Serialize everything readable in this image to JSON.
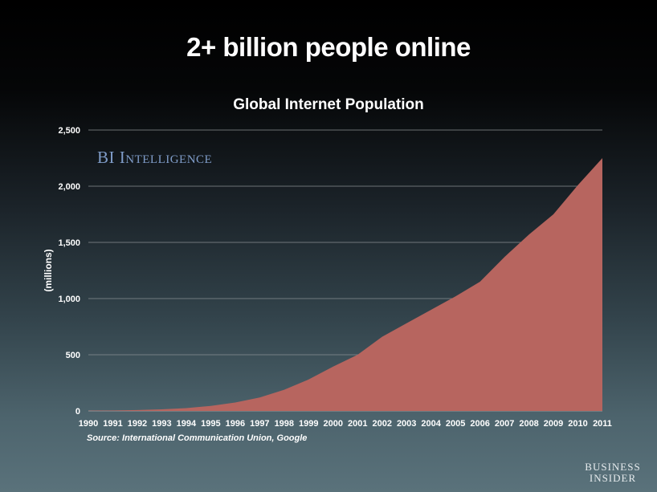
{
  "slide": {
    "title": "2+ billion people online",
    "source": "Source: International Communication Union, Google",
    "watermark": "BI Intelligence",
    "logo_line1": "BUSINESS",
    "logo_line2": "INSIDER"
  },
  "colors": {
    "area_fill": "#b7655f",
    "grid": "#8a8f93"
  },
  "chart_data": {
    "type": "area",
    "title": "Global Internet Population",
    "xlabel": "",
    "ylabel": "(millions)",
    "ylim": [
      0,
      2500
    ],
    "y_ticks": [
      "0",
      "500",
      "1,000",
      "1,500",
      "2,000",
      "2,500"
    ],
    "y_tick_values": [
      0,
      500,
      1000,
      1500,
      2000,
      2500
    ],
    "grid": true,
    "legend": "none",
    "x": [
      "1990",
      "1991",
      "1992",
      "1993",
      "1994",
      "1995",
      "1996",
      "1997",
      "1998",
      "1999",
      "2000",
      "2001",
      "2002",
      "2003",
      "2004",
      "2005",
      "2006",
      "2007",
      "2008",
      "2009",
      "2010",
      "2011"
    ],
    "series": [
      {
        "values": [
          2,
          4,
          8,
          14,
          25,
          45,
          75,
          120,
          188,
          280,
          395,
          500,
          660,
          780,
          900,
          1020,
          1150,
          1370,
          1570,
          1750,
          2010,
          2250
        ]
      }
    ]
  }
}
